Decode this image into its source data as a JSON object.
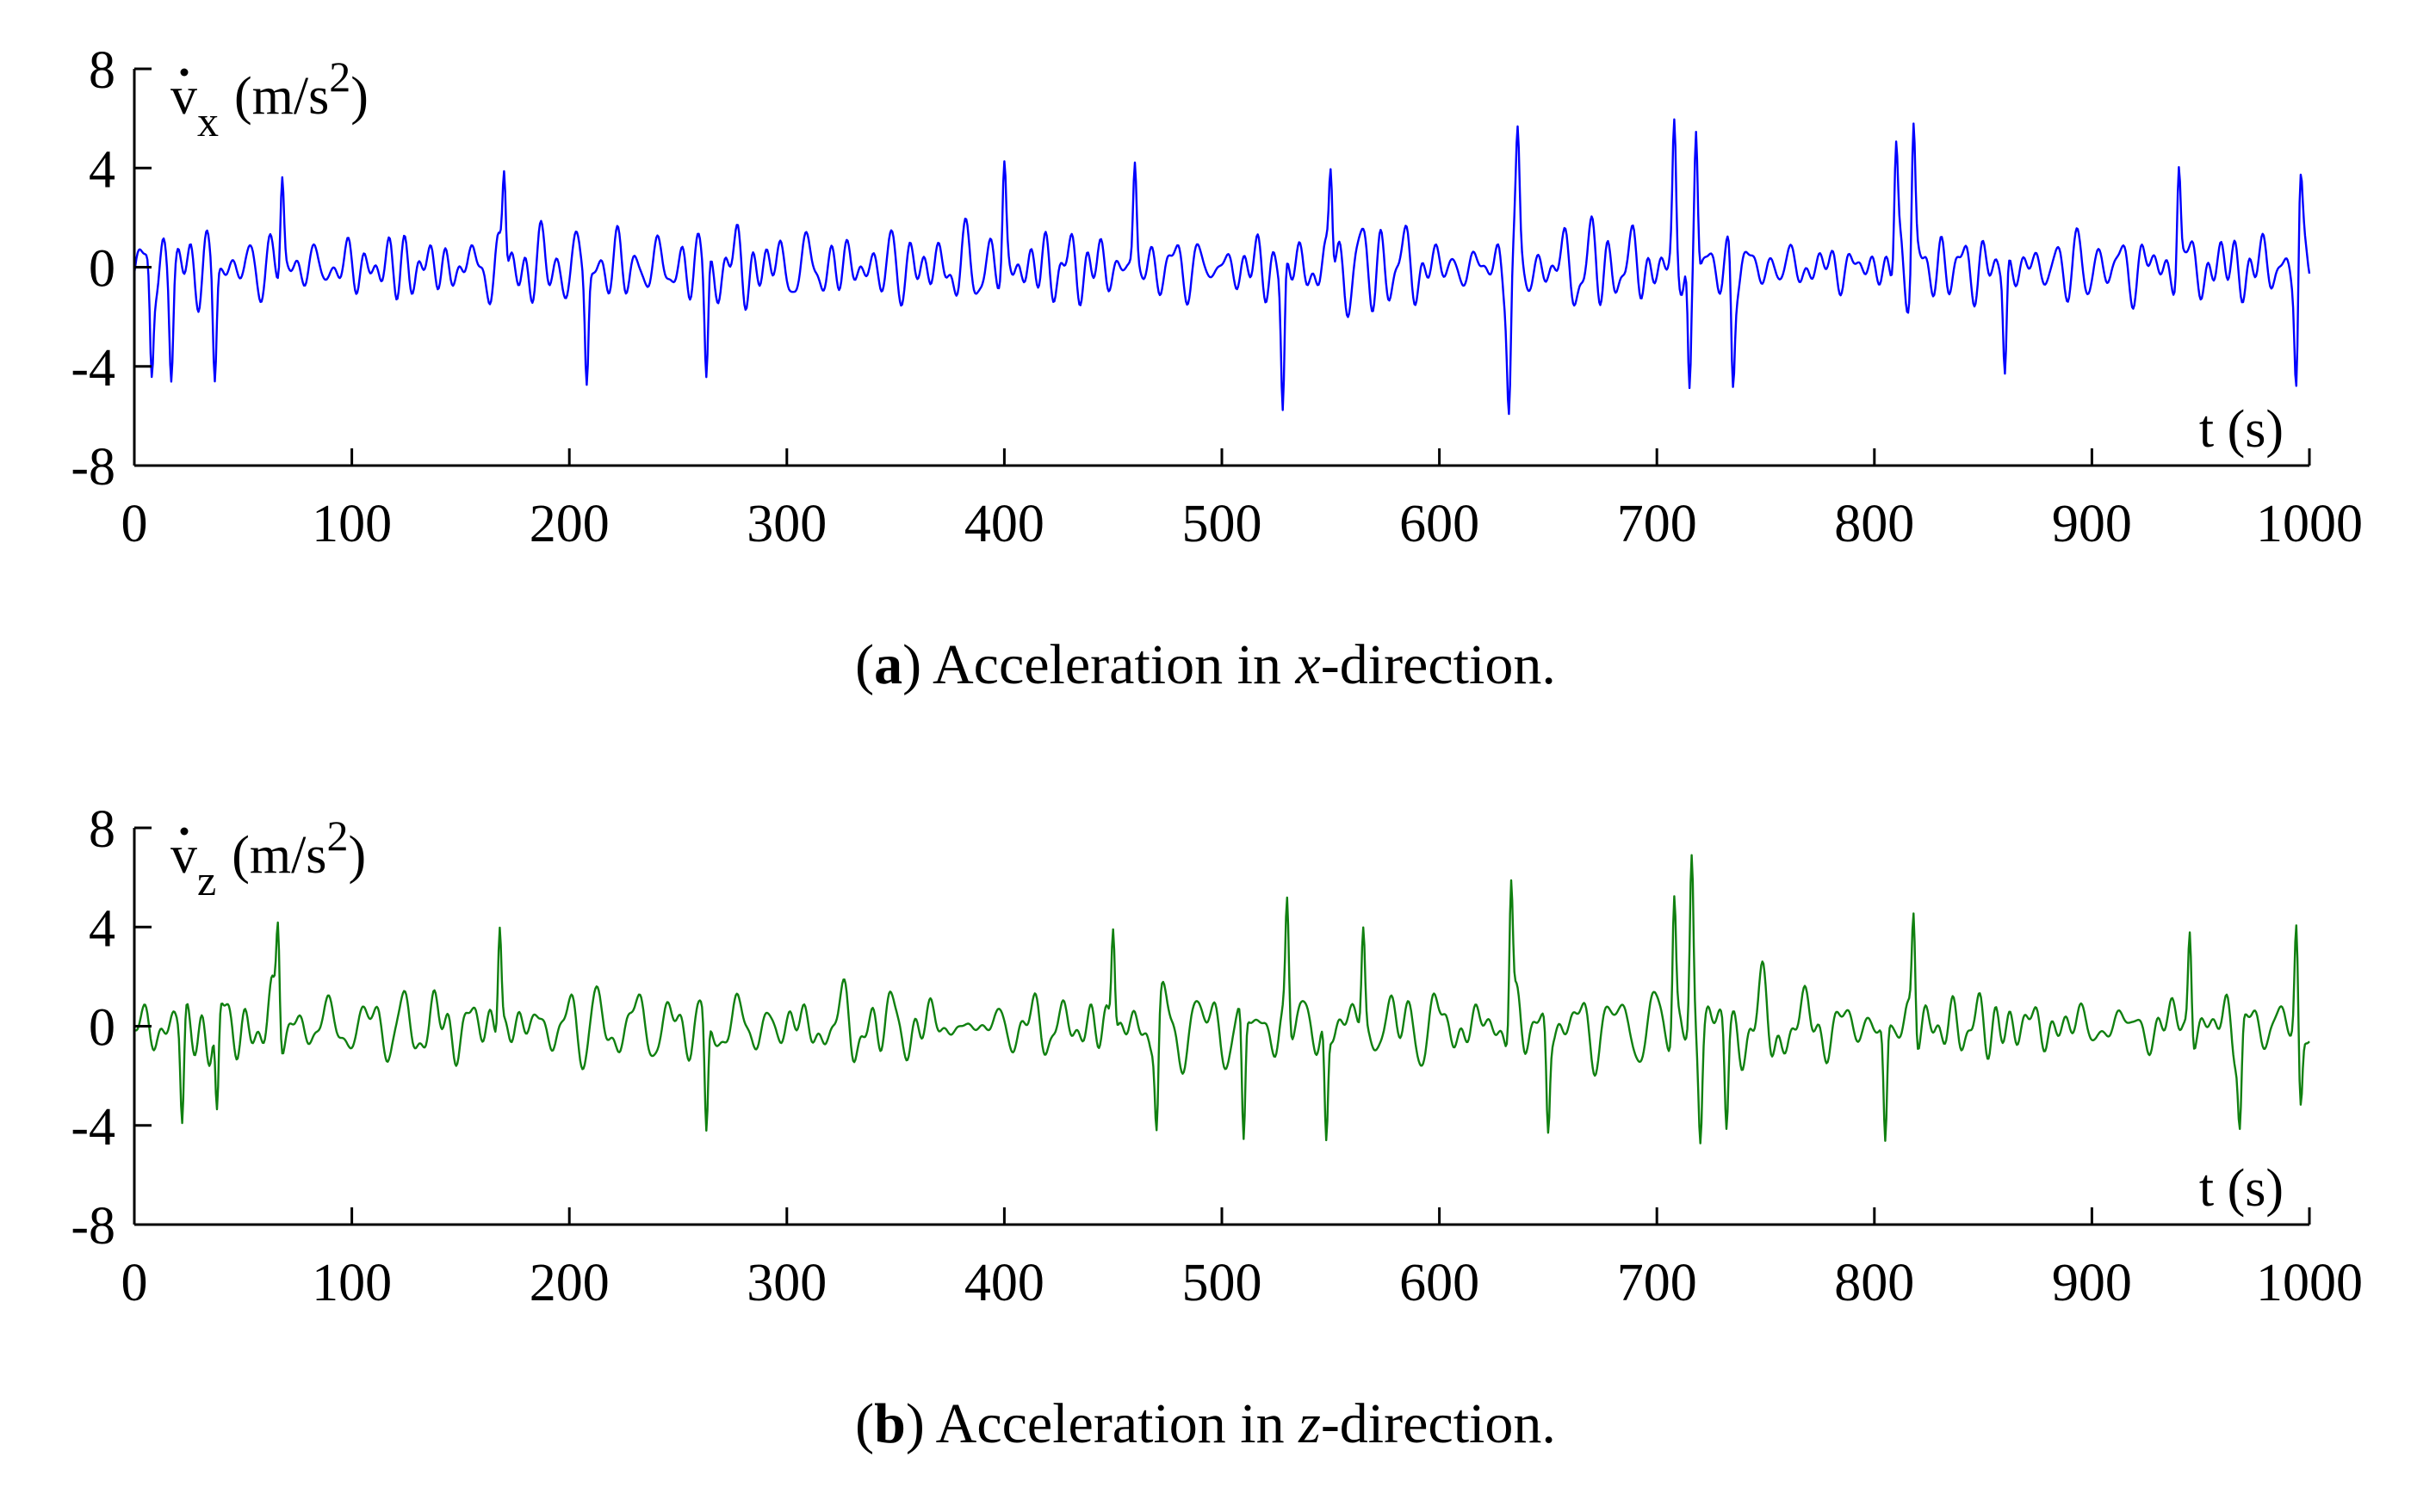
{
  "chart_data": [
    {
      "type": "line",
      "panel_letter": "a",
      "caption_pre": "Acceleration in ",
      "caption_var": "x",
      "caption_post": "-direction.",
      "ylabel": "v̇x (m/s²)",
      "ylabel_base": "v",
      "ylabel_sub": "x",
      "ylabel_unit": "(m/s",
      "ylabel_exp": "2",
      "ylabel_close": ")",
      "xlabel": "t (s)",
      "xlim": [
        0,
        1000
      ],
      "ylim": [
        -8,
        8
      ],
      "xticks": [
        0,
        100,
        200,
        300,
        400,
        500,
        600,
        700,
        800,
        900,
        1000
      ],
      "yticks": [
        -8,
        -4,
        0,
        4,
        8
      ],
      "color": "#0000ff",
      "seed": 7,
      "peaks": [
        {
          "t": 8,
          "v": -4.2
        },
        {
          "t": 17,
          "v": -4.1
        },
        {
          "t": 37,
          "v": -4.4
        },
        {
          "t": 68,
          "v": 3.7
        },
        {
          "t": 170,
          "v": 3.9
        },
        {
          "t": 208,
          "v": -4.5
        },
        {
          "t": 263,
          "v": -4.4
        },
        {
          "t": 400,
          "v": 4.0
        },
        {
          "t": 460,
          "v": 4.1
        },
        {
          "t": 528,
          "v": -5.8
        },
        {
          "t": 550,
          "v": 3.9
        },
        {
          "t": 632,
          "v": -5.2
        },
        {
          "t": 636,
          "v": 4.8
        },
        {
          "t": 708,
          "v": 5.5
        },
        {
          "t": 715,
          "v": -5.2
        },
        {
          "t": 718,
          "v": 5.8
        },
        {
          "t": 735,
          "v": -4.6
        },
        {
          "t": 810,
          "v": 4.8
        },
        {
          "t": 818,
          "v": 5.6
        },
        {
          "t": 860,
          "v": -4.3
        },
        {
          "t": 940,
          "v": 4.1
        },
        {
          "t": 994,
          "v": -4.6
        },
        {
          "t": 996,
          "v": 3.3
        }
      ]
    },
    {
      "type": "line",
      "panel_letter": "b",
      "caption_pre": "Acceleration in ",
      "caption_var": "z",
      "caption_post": "-direction.",
      "ylabel": "v̇z (m/s²)",
      "ylabel_base": "v",
      "ylabel_sub": "z",
      "ylabel_unit": "(m/s",
      "ylabel_exp": "2",
      "ylabel_close": ")",
      "xlabel": "t (s)",
      "xlim": [
        0,
        1000
      ],
      "ylim": [
        -8,
        8
      ],
      "xticks": [
        0,
        100,
        200,
        300,
        400,
        500,
        600,
        700,
        800,
        900,
        1000
      ],
      "yticks": [
        -8,
        -4,
        0,
        4,
        8
      ],
      "color": "#108010",
      "seed": 19,
      "peaks": [
        {
          "t": 22,
          "v": -4.1
        },
        {
          "t": 38,
          "v": -3.9
        },
        {
          "t": 66,
          "v": 4.3
        },
        {
          "t": 168,
          "v": 4.2
        },
        {
          "t": 263,
          "v": -4.5
        },
        {
          "t": 450,
          "v": 4.1
        },
        {
          "t": 470,
          "v": -4.1
        },
        {
          "t": 510,
          "v": -5.0
        },
        {
          "t": 530,
          "v": 5.1
        },
        {
          "t": 548,
          "v": -4.7
        },
        {
          "t": 565,
          "v": 4.0
        },
        {
          "t": 633,
          "v": 5.9
        },
        {
          "t": 650,
          "v": -4.2
        },
        {
          "t": 708,
          "v": 5.3
        },
        {
          "t": 716,
          "v": 6.9
        },
        {
          "t": 720,
          "v": -4.2
        },
        {
          "t": 732,
          "v": -4.0
        },
        {
          "t": 805,
          "v": -4.7
        },
        {
          "t": 818,
          "v": 4.7
        },
        {
          "t": 945,
          "v": 4.1
        },
        {
          "t": 968,
          "v": -3.8
        },
        {
          "t": 994,
          "v": 4.2
        },
        {
          "t": 996,
          "v": -3.2
        }
      ]
    }
  ]
}
